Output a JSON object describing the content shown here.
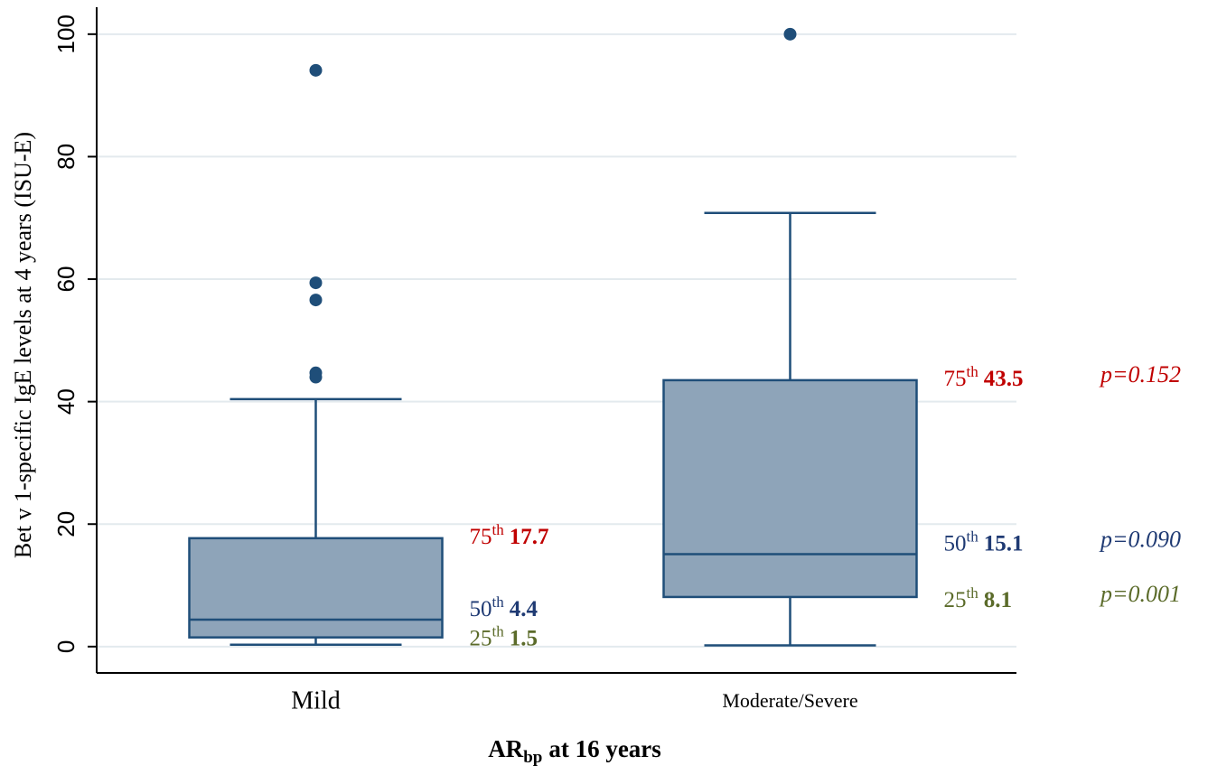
{
  "chart_data": {
    "type": "box",
    "ylabel": "Bet v 1-specific IgE levels  at 4 years (ISU-E)",
    "xlabel": {
      "main": "AR",
      "subscript": "bp",
      "rest": "at 16 years"
    },
    "categories": [
      "Mild",
      "Moderate/Severe"
    ],
    "ylim": [
      -4.3,
      104.4
    ],
    "yticks": [
      0,
      20,
      40,
      60,
      80,
      100
    ],
    "grid": true,
    "color": "#8ea4b9",
    "edge_color": "#1f4e79",
    "boxes": [
      {
        "whisker_low": 0.3,
        "q1": 1.5,
        "median": 4.4,
        "q3": 17.7,
        "whisker_high": 40.4,
        "outliers": [
          94.1,
          59.4,
          56.6,
          44.7,
          44.0
        ]
      },
      {
        "whisker_low": 0.2,
        "q1": 8.1,
        "median": 15.1,
        "q3": 43.5,
        "whisker_high": 70.8,
        "outliers": [
          100
        ]
      }
    ],
    "percentile_labels": {
      "q1": "25",
      "median": "50",
      "q3": "75"
    },
    "ordinal_suffix": "th",
    "label_colors": {
      "q1": "#5b6b2a",
      "median": "#1f3a73",
      "q3": "#c00000"
    },
    "p_values": {
      "q1": "p=0.001",
      "median": "p=0.090",
      "q3": "p=0.152"
    }
  }
}
